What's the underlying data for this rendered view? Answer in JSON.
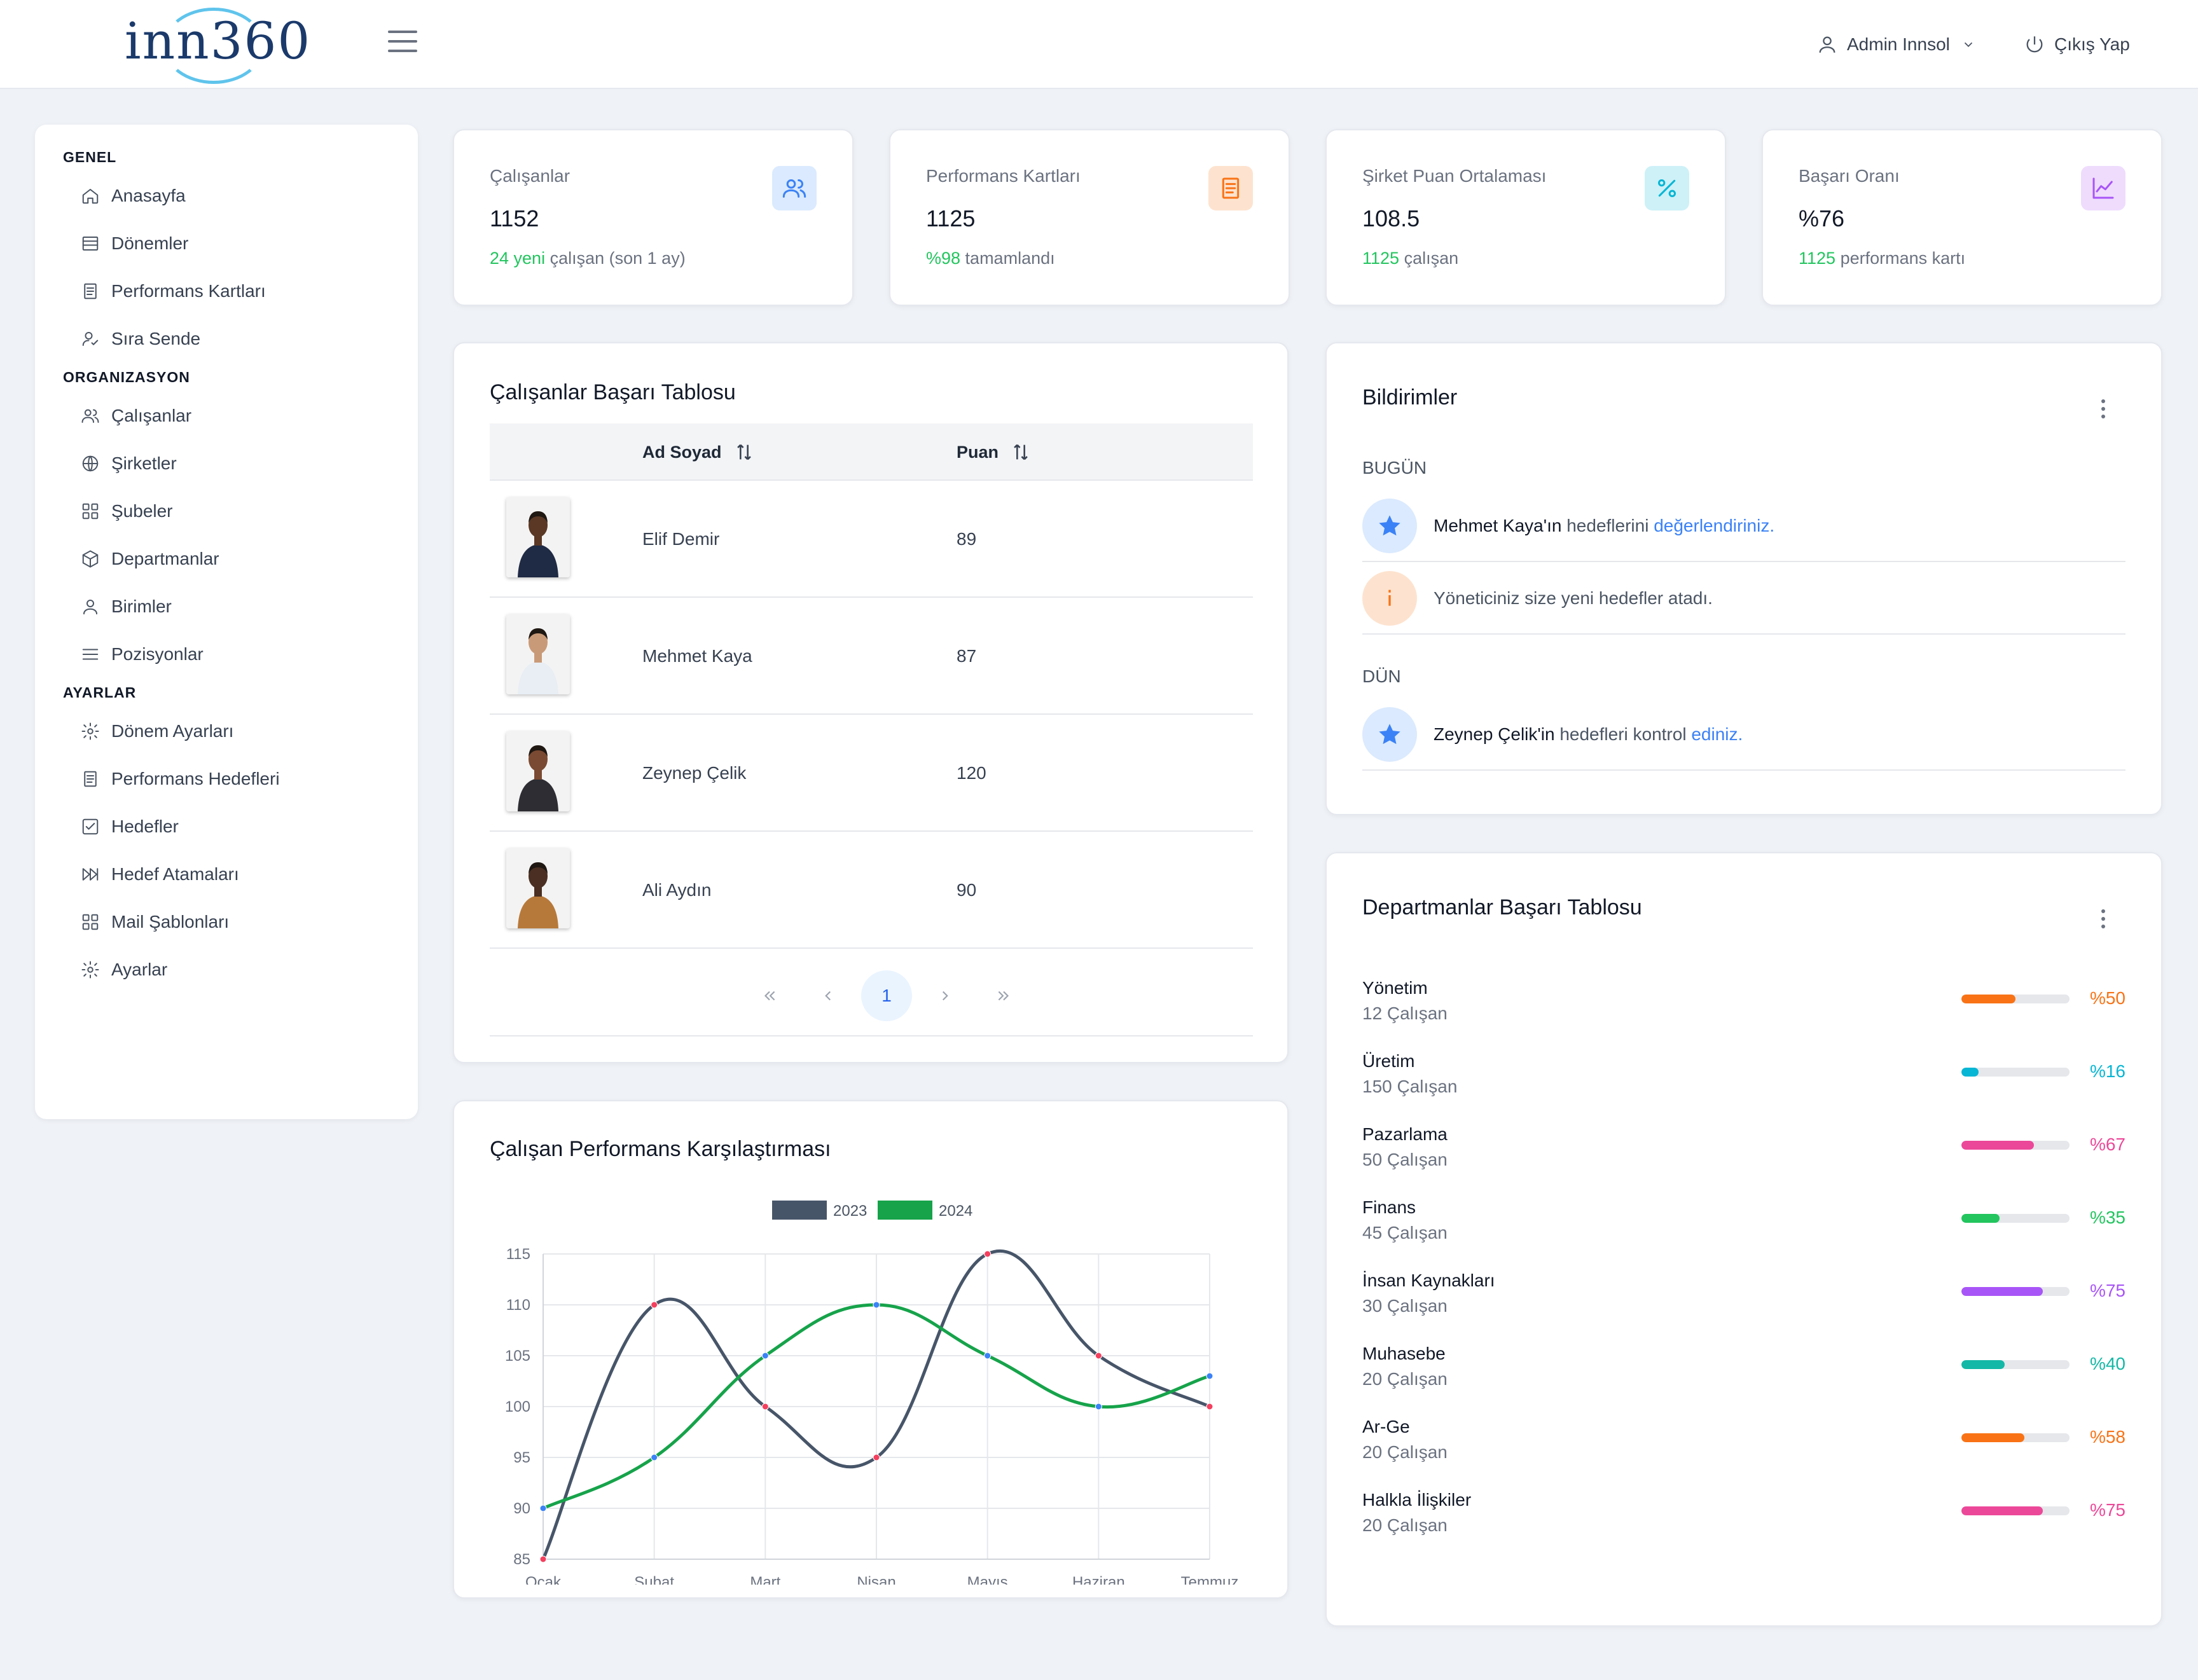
{
  "header": {
    "logo_text": "inn360",
    "user_label": "Admin Innsol",
    "logout_label": "Çıkış Yap"
  },
  "sidebar": {
    "sections": [
      {
        "title": "GENEL",
        "items": [
          {
            "label": "Anasayfa",
            "icon": "home-icon"
          },
          {
            "label": "Dönemler",
            "icon": "calendar-list-icon"
          },
          {
            "label": "Performans Kartları",
            "icon": "document-icon"
          },
          {
            "label": "Sıra Sende",
            "icon": "user-check-icon"
          }
        ]
      },
      {
        "title": "ORGANIZASYON",
        "items": [
          {
            "label": "Çalışanlar",
            "icon": "users-icon"
          },
          {
            "label": "Şirketler",
            "icon": "globe-icon"
          },
          {
            "label": "Şubeler",
            "icon": "grid-icon"
          },
          {
            "label": "Departmanlar",
            "icon": "cube-icon"
          },
          {
            "label": "Birimler",
            "icon": "user-icon"
          },
          {
            "label": "Pozisyonlar",
            "icon": "list-icon"
          }
        ]
      },
      {
        "title": "AYARLAR",
        "items": [
          {
            "label": "Dönem Ayarları",
            "icon": "gear-icon"
          },
          {
            "label": "Performans Hedefleri",
            "icon": "document-icon"
          },
          {
            "label": "Hedefler",
            "icon": "checkbox-icon"
          },
          {
            "label": "Hedef Atamaları",
            "icon": "fast-forward-icon"
          },
          {
            "label": "Mail Şablonları",
            "icon": "grid-icon"
          },
          {
            "label": "Ayarlar",
            "icon": "gear-icon"
          }
        ]
      }
    ]
  },
  "stats": [
    {
      "label": "Çalışanlar",
      "value": "1152",
      "highlight": "24 yeni",
      "rest": " çalışan (son 1 ay)",
      "icon": "users-icon",
      "color": "#3b82f6",
      "bg": "#dbeafe"
    },
    {
      "label": "Performans Kartları",
      "value": "1125",
      "highlight": "%98",
      "rest": " tamamlandı",
      "icon": "document-icon",
      "color": "#f97316",
      "bg": "#fde3cf"
    },
    {
      "label": "Şirket Puan Ortalaması",
      "value": "108.5",
      "highlight": "1125",
      "rest": " çalışan",
      "icon": "percent-icon",
      "color": "#06b6d4",
      "bg": "#cdf1f7"
    },
    {
      "label": "Başarı Oranı",
      "value": "%76",
      "highlight": "1125",
      "rest": " performans kartı",
      "icon": "trend-chart-icon",
      "color": "#a855f7",
      "bg": "#efdcfd"
    }
  ],
  "employees_table": {
    "title": "Çalışanlar Başarı Tablosu",
    "col_name": "Ad Soyad",
    "col_score": "Puan",
    "rows": [
      {
        "name": "Elif Demir",
        "score": "89",
        "skin": "#5a3825",
        "clothes": "#1f2a44"
      },
      {
        "name": "Mehmet Kaya",
        "score": "87",
        "skin": "#c99a78",
        "clothes": "#e8eef4"
      },
      {
        "name": "Zeynep Çelik",
        "score": "120",
        "skin": "#7a4a32",
        "clothes": "#2d2d33"
      },
      {
        "name": "Ali Aydın",
        "score": "90",
        "skin": "#4a2f22",
        "clothes": "#b7793a"
      }
    ],
    "page": "1"
  },
  "notifications": {
    "title": "Bildirimler",
    "groups": [
      {
        "label": "BUGÜN",
        "items": [
          {
            "type": "star",
            "bold": "Mehmet Kaya'ın",
            "text": " hedeflerini ",
            "link": "değerlendiriniz."
          },
          {
            "type": "info",
            "bold": "",
            "text": "Yöneticiniz size yeni hedefler atadı.",
            "link": ""
          }
        ]
      },
      {
        "label": "DÜN",
        "items": [
          {
            "type": "star",
            "bold": "Zeynep Çelik'in",
            "text": " hedefleri kontrol ",
            "link": "ediniz."
          }
        ]
      }
    ]
  },
  "departments": {
    "title": "Departmanlar Başarı Tablosu",
    "items": [
      {
        "name": "Yönetim",
        "count": "12 Çalışan",
        "pct": "%50",
        "value": 50,
        "color": "#f97316"
      },
      {
        "name": "Üretim",
        "count": "150 Çalışan",
        "pct": "%16",
        "value": 16,
        "color": "#06b6d4"
      },
      {
        "name": "Pazarlama",
        "count": "50 Çalışan",
        "pct": "%67",
        "value": 67,
        "color": "#ec4899"
      },
      {
        "name": "Finans",
        "count": "45 Çalışan",
        "pct": "%35",
        "value": 35,
        "color": "#22c55e"
      },
      {
        "name": "İnsan Kaynakları",
        "count": "30 Çalışan",
        "pct": "%75",
        "value": 75,
        "color": "#a855f7"
      },
      {
        "name": "Muhasebe",
        "count": "20 Çalışan",
        "pct": "%40",
        "value": 40,
        "color": "#14b8a6"
      },
      {
        "name": "Ar-Ge",
        "count": "20 Çalışan",
        "pct": "%58",
        "value": 58,
        "color": "#f97316"
      },
      {
        "name": "Halkla İlişkiler",
        "count": "20 Çalışan",
        "pct": "%75",
        "value": 75,
        "color": "#ec4899"
      }
    ]
  },
  "performance_chart": {
    "title": "Çalışan Performans Karşılaştırması"
  },
  "chart_data": {
    "type": "line",
    "title": "Çalışan Performans Karşılaştırması",
    "categories": [
      "Ocak",
      "Şubat",
      "Mart",
      "Nisan",
      "Mayıs",
      "Haziran",
      "Temmuz"
    ],
    "series": [
      {
        "name": "2023",
        "values": [
          85,
          110,
          100,
          95,
          115,
          105,
          100
        ],
        "color": "#475569"
      },
      {
        "name": "2024",
        "values": [
          90,
          95,
          105,
          110,
          105,
          100,
          103
        ],
        "color": "#16a34a"
      }
    ],
    "yticks": [
      85,
      90,
      95,
      100,
      105,
      110,
      115
    ],
    "ylim": [
      85,
      115
    ],
    "grid": true,
    "legend": "top-center"
  }
}
